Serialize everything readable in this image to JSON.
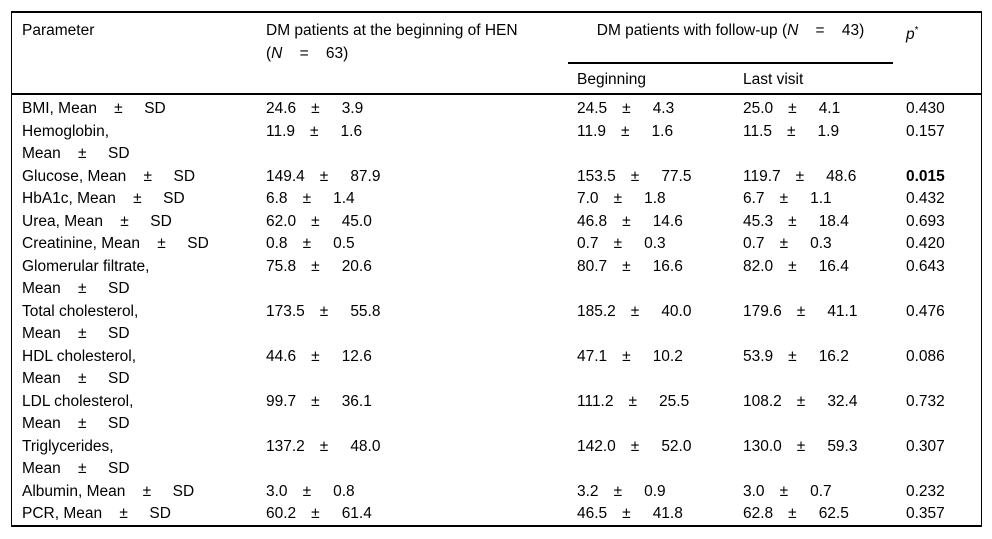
{
  "table": {
    "pm_sign": "±",
    "header": {
      "parameter": "Parameter",
      "hen_col": {
        "title": "DM patients at the beginning of HEN",
        "n_prefix": "(",
        "n_italic": "N",
        "n_suffix": "    =    63)"
      },
      "followup_col": {
        "title_prefix": "DM patients with follow-up (",
        "n_italic": "N",
        "n_suffix": "    =    43)",
        "sub_beginning": "Beginning",
        "sub_lastvisit": "Last visit"
      },
      "p_label": "p",
      "p_star": "*"
    },
    "rows": [
      {
        "param_lines": [
          "BMI, Mean    ±     SD"
        ],
        "hen": {
          "mean": "24.6",
          "sd": "3.9"
        },
        "fu_beginning": {
          "mean": "24.5",
          "sd": "4.3"
        },
        "fu_last": {
          "mean": "25.0",
          "sd": "4.1"
        },
        "p": "0.430",
        "p_bold": false
      },
      {
        "param_lines": [
          "Hemoglobin,",
          "Mean    ±     SD"
        ],
        "hen": {
          "mean": "11.9",
          "sd": "1.6"
        },
        "fu_beginning": {
          "mean": "11.9",
          "sd": "1.6"
        },
        "fu_last": {
          "mean": "11.5",
          "sd": "1.9"
        },
        "p": "0.157",
        "p_bold": false
      },
      {
        "param_lines": [
          "Glucose, Mean    ±     SD"
        ],
        "hen": {
          "mean": "149.4",
          "sd": "87.9"
        },
        "fu_beginning": {
          "mean": "153.5",
          "sd": "77.5"
        },
        "fu_last": {
          "mean": "119.7",
          "sd": "48.6"
        },
        "p": "0.015",
        "p_bold": true
      },
      {
        "param_lines": [
          "HbA1c, Mean    ±     SD"
        ],
        "hen": {
          "mean": "6.8",
          "sd": "1.4"
        },
        "fu_beginning": {
          "mean": "7.0",
          "sd": "1.8"
        },
        "fu_last": {
          "mean": "6.7",
          "sd": "1.1"
        },
        "p": "0.432",
        "p_bold": false
      },
      {
        "param_lines": [
          "Urea, Mean    ±     SD"
        ],
        "hen": {
          "mean": "62.0",
          "sd": "45.0"
        },
        "fu_beginning": {
          "mean": "46.8",
          "sd": "14.6"
        },
        "fu_last": {
          "mean": "45.3",
          "sd": "18.4"
        },
        "p": "0.693",
        "p_bold": false
      },
      {
        "param_lines": [
          "Creatinine, Mean    ±     SD"
        ],
        "hen": {
          "mean": "0.8",
          "sd": "0.5"
        },
        "fu_beginning": {
          "mean": "0.7",
          "sd": "0.3"
        },
        "fu_last": {
          "mean": "0.7",
          "sd": "0.3"
        },
        "p": "0.420",
        "p_bold": false
      },
      {
        "param_lines": [
          "Glomerular filtrate,",
          "Mean    ±     SD"
        ],
        "hen": {
          "mean": "75.8",
          "sd": "20.6"
        },
        "fu_beginning": {
          "mean": "80.7",
          "sd": "16.6"
        },
        "fu_last": {
          "mean": "82.0",
          "sd": "16.4"
        },
        "p": "0.643",
        "p_bold": false
      },
      {
        "param_lines": [
          "Total cholesterol,",
          "Mean    ±     SD"
        ],
        "hen": {
          "mean": "173.5",
          "sd": "55.8"
        },
        "fu_beginning": {
          "mean": "185.2",
          "sd": "40.0"
        },
        "fu_last": {
          "mean": "179.6",
          "sd": "41.1"
        },
        "p": "0.476",
        "p_bold": false
      },
      {
        "param_lines": [
          "HDL cholesterol,",
          "Mean    ±     SD"
        ],
        "hen": {
          "mean": "44.6",
          "sd": "12.6"
        },
        "fu_beginning": {
          "mean": "47.1",
          "sd": "10.2"
        },
        "fu_last": {
          "mean": "53.9",
          "sd": "16.2"
        },
        "p": "0.086",
        "p_bold": false
      },
      {
        "param_lines": [
          "LDL cholesterol,",
          "Mean    ±     SD"
        ],
        "hen": {
          "mean": "99.7",
          "sd": "36.1"
        },
        "fu_beginning": {
          "mean": "111.2",
          "sd": "25.5"
        },
        "fu_last": {
          "mean": "108.2",
          "sd": "32.4"
        },
        "p": "0.732",
        "p_bold": false
      },
      {
        "param_lines": [
          "Triglycerides,",
          "Mean    ±     SD"
        ],
        "hen": {
          "mean": "137.2",
          "sd": "48.0"
        },
        "fu_beginning": {
          "mean": "142.0",
          "sd": "52.0"
        },
        "fu_last": {
          "mean": "130.0",
          "sd": "59.3"
        },
        "p": "0.307",
        "p_bold": false
      },
      {
        "param_lines": [
          "Albumin, Mean    ±     SD"
        ],
        "hen": {
          "mean": "3.0",
          "sd": "0.8"
        },
        "fu_beginning": {
          "mean": "3.2",
          "sd": "0.9"
        },
        "fu_last": {
          "mean": "3.0",
          "sd": "0.7"
        },
        "p": "0.232",
        "p_bold": false
      },
      {
        "param_lines": [
          "PCR, Mean    ±     SD"
        ],
        "hen": {
          "mean": "60.2",
          "sd": "61.4"
        },
        "fu_beginning": {
          "mean": "46.5",
          "sd": "41.8"
        },
        "fu_last": {
          "mean": "62.8",
          "sd": "62.5"
        },
        "p": "0.357",
        "p_bold": false
      }
    ]
  }
}
